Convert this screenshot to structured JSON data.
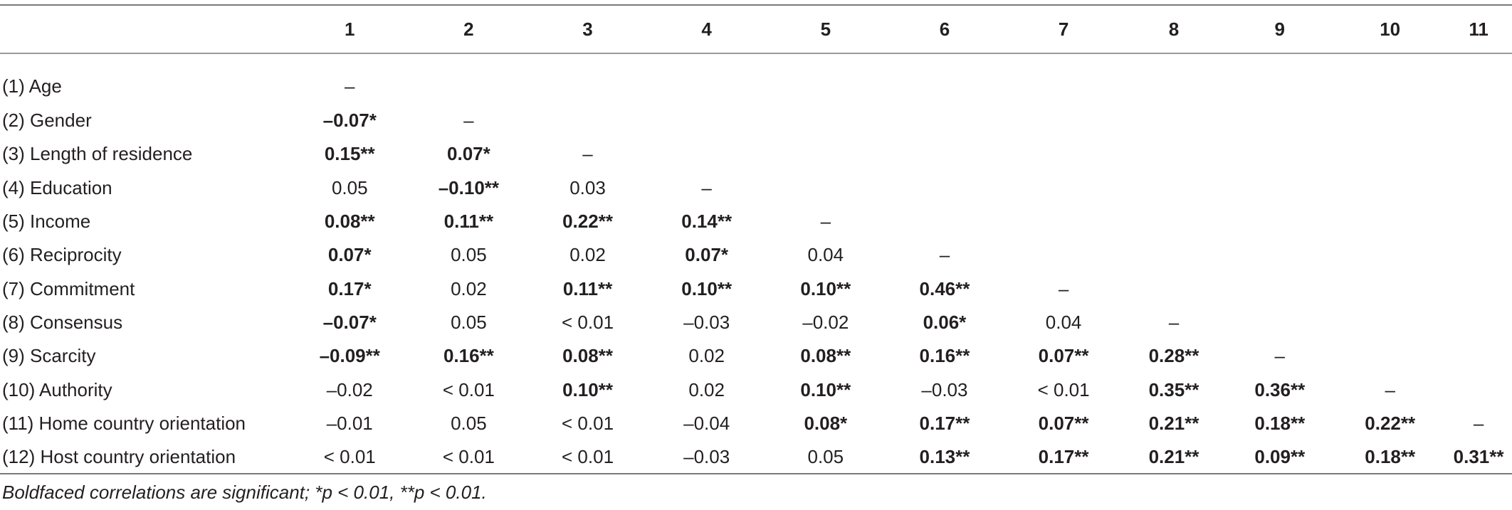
{
  "columns": [
    "1",
    "2",
    "3",
    "4",
    "5",
    "6",
    "7",
    "8",
    "9",
    "10",
    "11"
  ],
  "rows": [
    {
      "label": "(1) Age",
      "cells": [
        {
          "v": "–",
          "b": false
        }
      ]
    },
    {
      "label": "(2) Gender",
      "cells": [
        {
          "v": "–0.07*",
          "b": true
        },
        {
          "v": "–",
          "b": false
        }
      ]
    },
    {
      "label": "(3) Length of residence",
      "cells": [
        {
          "v": "0.15**",
          "b": true
        },
        {
          "v": "0.07*",
          "b": true
        },
        {
          "v": "–",
          "b": false
        }
      ]
    },
    {
      "label": "(4) Education",
      "cells": [
        {
          "v": "0.05",
          "b": false
        },
        {
          "v": "–0.10**",
          "b": true
        },
        {
          "v": "0.03",
          "b": false
        },
        {
          "v": "–",
          "b": false
        }
      ]
    },
    {
      "label": "(5) Income",
      "cells": [
        {
          "v": "0.08**",
          "b": true
        },
        {
          "v": "0.11**",
          "b": true
        },
        {
          "v": "0.22**",
          "b": true
        },
        {
          "v": "0.14**",
          "b": true
        },
        {
          "v": "–",
          "b": false
        }
      ]
    },
    {
      "label": "(6) Reciprocity",
      "cells": [
        {
          "v": "0.07*",
          "b": true
        },
        {
          "v": "0.05",
          "b": false
        },
        {
          "v": "0.02",
          "b": false
        },
        {
          "v": "0.07*",
          "b": true
        },
        {
          "v": "0.04",
          "b": false
        },
        {
          "v": "–",
          "b": false
        }
      ]
    },
    {
      "label": "(7) Commitment",
      "cells": [
        {
          "v": "0.17*",
          "b": true
        },
        {
          "v": "0.02",
          "b": false
        },
        {
          "v": "0.11**",
          "b": true
        },
        {
          "v": "0.10**",
          "b": true
        },
        {
          "v": "0.10**",
          "b": true
        },
        {
          "v": "0.46**",
          "b": true
        },
        {
          "v": "–",
          "b": false
        }
      ]
    },
    {
      "label": "(8) Consensus",
      "cells": [
        {
          "v": "–0.07*",
          "b": true
        },
        {
          "v": "0.05",
          "b": false
        },
        {
          "v": "< 0.01",
          "b": false
        },
        {
          "v": "–0.03",
          "b": false
        },
        {
          "v": "–0.02",
          "b": false
        },
        {
          "v": "0.06*",
          "b": true
        },
        {
          "v": "0.04",
          "b": false
        },
        {
          "v": "–",
          "b": false
        }
      ]
    },
    {
      "label": "(9) Scarcity",
      "cells": [
        {
          "v": "–0.09**",
          "b": true
        },
        {
          "v": "0.16**",
          "b": true
        },
        {
          "v": "0.08**",
          "b": true
        },
        {
          "v": "0.02",
          "b": false
        },
        {
          "v": "0.08**",
          "b": true
        },
        {
          "v": "0.16**",
          "b": true
        },
        {
          "v": "0.07**",
          "b": true
        },
        {
          "v": "0.28**",
          "b": true
        },
        {
          "v": "–",
          "b": false
        }
      ]
    },
    {
      "label": "(10) Authority",
      "cells": [
        {
          "v": "–0.02",
          "b": false
        },
        {
          "v": "< 0.01",
          "b": false
        },
        {
          "v": "0.10**",
          "b": true
        },
        {
          "v": "0.02",
          "b": false
        },
        {
          "v": "0.10**",
          "b": true
        },
        {
          "v": "–0.03",
          "b": false
        },
        {
          "v": "< 0.01",
          "b": false
        },
        {
          "v": "0.35**",
          "b": true
        },
        {
          "v": "0.36**",
          "b": true
        },
        {
          "v": "–",
          "b": false
        }
      ]
    },
    {
      "label": "(11) Home country orientation",
      "cells": [
        {
          "v": "–0.01",
          "b": false
        },
        {
          "v": "0.05",
          "b": false
        },
        {
          "v": "< 0.01",
          "b": false
        },
        {
          "v": "–0.04",
          "b": false
        },
        {
          "v": "0.08*",
          "b": true
        },
        {
          "v": "0.17**",
          "b": true
        },
        {
          "v": "0.07**",
          "b": true
        },
        {
          "v": "0.21**",
          "b": true
        },
        {
          "v": "0.18**",
          "b": true
        },
        {
          "v": "0.22**",
          "b": true
        },
        {
          "v": "–",
          "b": false
        }
      ]
    },
    {
      "label": "(12) Host country orientation",
      "cells": [
        {
          "v": "< 0.01",
          "b": false
        },
        {
          "v": "< 0.01",
          "b": false
        },
        {
          "v": "< 0.01",
          "b": false
        },
        {
          "v": "–0.03",
          "b": false
        },
        {
          "v": "0.05",
          "b": false
        },
        {
          "v": "0.13**",
          "b": true
        },
        {
          "v": "0.17**",
          "b": true
        },
        {
          "v": "0.21**",
          "b": true
        },
        {
          "v": "0.09**",
          "b": true
        },
        {
          "v": "0.18**",
          "b": true
        },
        {
          "v": "0.31**",
          "b": true
        }
      ]
    }
  ],
  "footnote": "Boldfaced correlations are significant; *p < 0.01, **p < 0.01."
}
